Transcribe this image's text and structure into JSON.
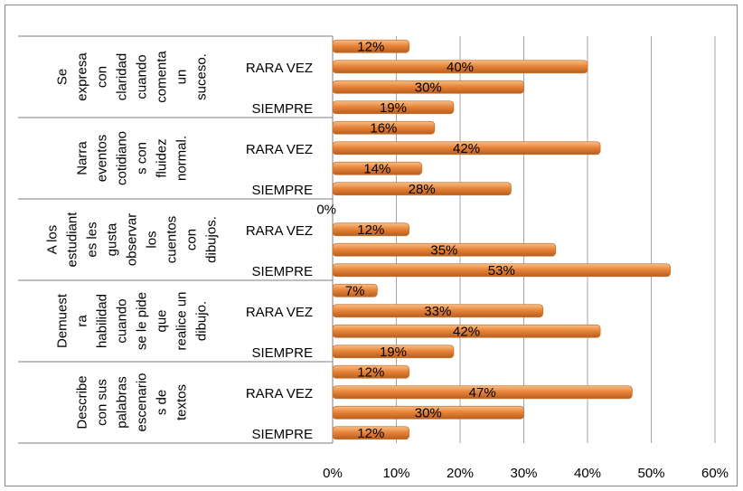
{
  "chart_data": {
    "type": "bar",
    "orientation": "horizontal",
    "xlim": [
      0,
      60
    ],
    "x_ticks": [
      "0%",
      "10%",
      "20%",
      "30%",
      "40%",
      "50%",
      "60%"
    ],
    "grid": true,
    "bar_color": "#E8853A",
    "groups": [
      {
        "label_lines": [
          "Se",
          "expresa",
          "con",
          "claridad",
          "cuando",
          "comenta",
          "un",
          "suceso."
        ],
        "bars": [
          {
            "tick": "",
            "value": 12,
            "data_label": "12%"
          },
          {
            "tick": "RARA VEZ",
            "value": 40,
            "data_label": "40%"
          },
          {
            "tick": "",
            "value": 30,
            "data_label": "30%"
          },
          {
            "tick": "SIEMPRE",
            "value": 19,
            "data_label": "19%"
          }
        ]
      },
      {
        "label_lines": [
          "Narra",
          "eventos",
          "cotidiano",
          "s con",
          "fluidez",
          "normal."
        ],
        "bars": [
          {
            "tick": "",
            "value": 16,
            "data_label": "16%"
          },
          {
            "tick": "RARA VEZ",
            "value": 42,
            "data_label": "42%"
          },
          {
            "tick": "",
            "value": 14,
            "data_label": "14%"
          },
          {
            "tick": "SIEMPRE",
            "value": 28,
            "data_label": "28%"
          }
        ]
      },
      {
        "label_lines": [
          "A los",
          "estudiant",
          "es les",
          "gusta",
          "observar",
          "los",
          "cuentos",
          "con",
          "dibujos."
        ],
        "bars": [
          {
            "tick": "",
            "value": 0,
            "data_label": "0%"
          },
          {
            "tick": "RARA VEZ",
            "value": 12,
            "data_label": "12%"
          },
          {
            "tick": "",
            "value": 35,
            "data_label": "35%"
          },
          {
            "tick": "SIEMPRE",
            "value": 53,
            "data_label": "53%"
          }
        ]
      },
      {
        "label_lines": [
          "Demuest",
          "ra",
          "habilidad",
          "cuando",
          "se le pide",
          "que",
          "realice un",
          "dibujo."
        ],
        "bars": [
          {
            "tick": "",
            "value": 7,
            "data_label": "7%"
          },
          {
            "tick": "RARA VEZ",
            "value": 33,
            "data_label": "33%"
          },
          {
            "tick": "",
            "value": 42,
            "data_label": "42%"
          },
          {
            "tick": "SIEMPRE",
            "value": 19,
            "data_label": "19%"
          }
        ]
      },
      {
        "label_lines": [
          "Describe",
          "con sus",
          "palabras",
          "escenario",
          "s de",
          "textos"
        ],
        "bars": [
          {
            "tick": "",
            "value": 12,
            "data_label": "12%"
          },
          {
            "tick": "RARA VEZ",
            "value": 47,
            "data_label": "47%"
          },
          {
            "tick": "",
            "value": 30,
            "data_label": "30%"
          },
          {
            "tick": "SIEMPRE",
            "value": 12,
            "data_label": "12%"
          }
        ]
      }
    ]
  }
}
